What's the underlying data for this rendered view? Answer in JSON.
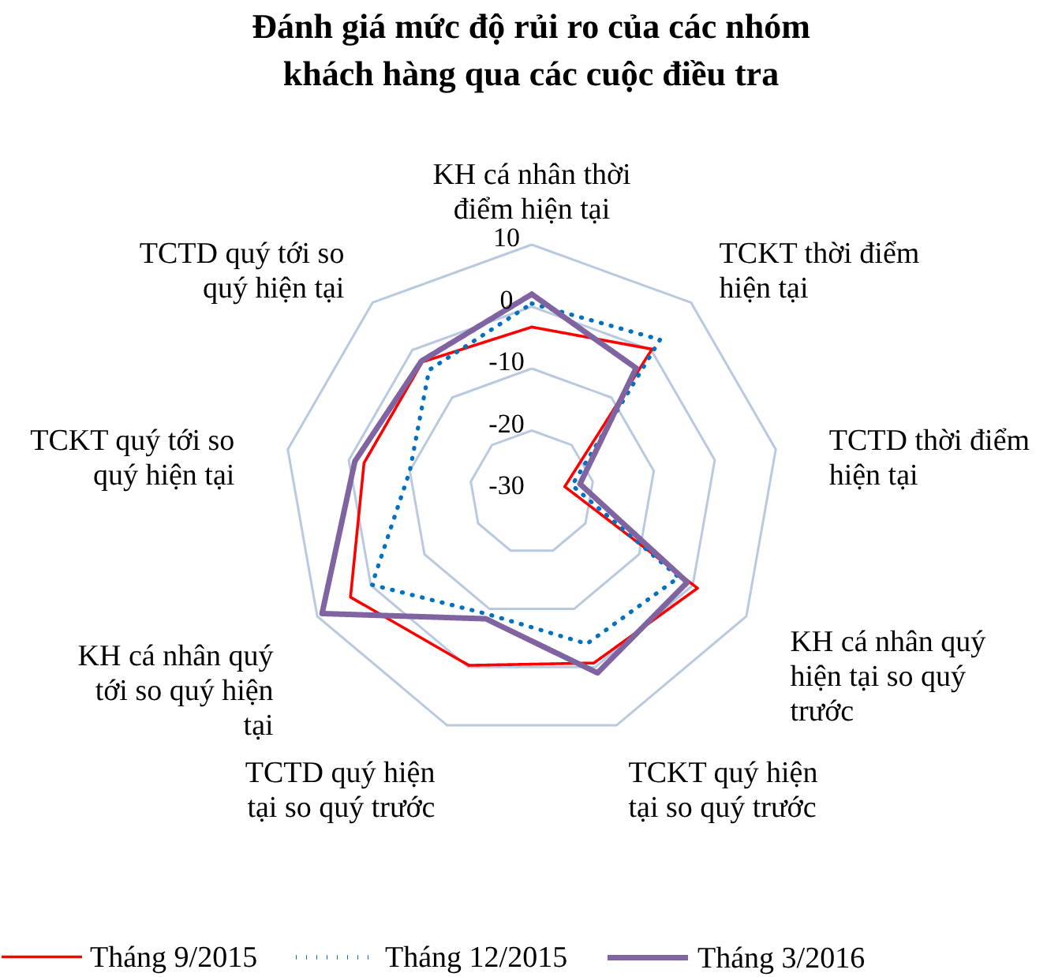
{
  "chart_data": {
    "type": "radar",
    "title": "Đánh giá mức độ rủi ro của các nhóm khách hàng qua các cuộc điều tra",
    "categories": [
      "KH cá nhân thời điểm hiện tại",
      "TCKT thời điểm hiện tại",
      "TCTD thời điểm hiện tại",
      "KH cá nhân quý hiện tại so quý trước",
      "TCKT quý hiện tại so quý trước",
      "TCTD quý hiện tại so quý trước",
      "KH cá nhân quý tới so quý hiện tại",
      "TCKT quý tới so quý hiện tại",
      "TCTD quý tới so quý hiện tại"
    ],
    "ylim": [
      -30,
      10
    ],
    "yticks": [
      -30,
      -20,
      -10,
      0,
      10
    ],
    "grid": true,
    "legend": "bottom",
    "series": [
      {
        "name": "Tháng 9/2015",
        "color": "#ff0000",
        "line_style": "solid",
        "values": [
          -3.3,
          0.2,
          -24.6,
          0.9,
          -0.7,
          -0.3,
          3.8,
          -2.5,
          -2.5
        ]
      },
      {
        "name": "Tháng 12/2015",
        "color": "#0070c0",
        "line_style": "dotted",
        "values": [
          0.5,
          2.2,
          -23.4,
          -2.6,
          -4,
          -9.1,
          -0.2,
          -10,
          -4.2
        ]
      },
      {
        "name": "Tháng 3/2016",
        "color": "#8064a2",
        "line_style": "solid",
        "values": [
          2,
          -3.8,
          -22.1,
          -1,
          1,
          -8.3,
          9.1,
          -1,
          -2.3
        ]
      }
    ]
  }
}
